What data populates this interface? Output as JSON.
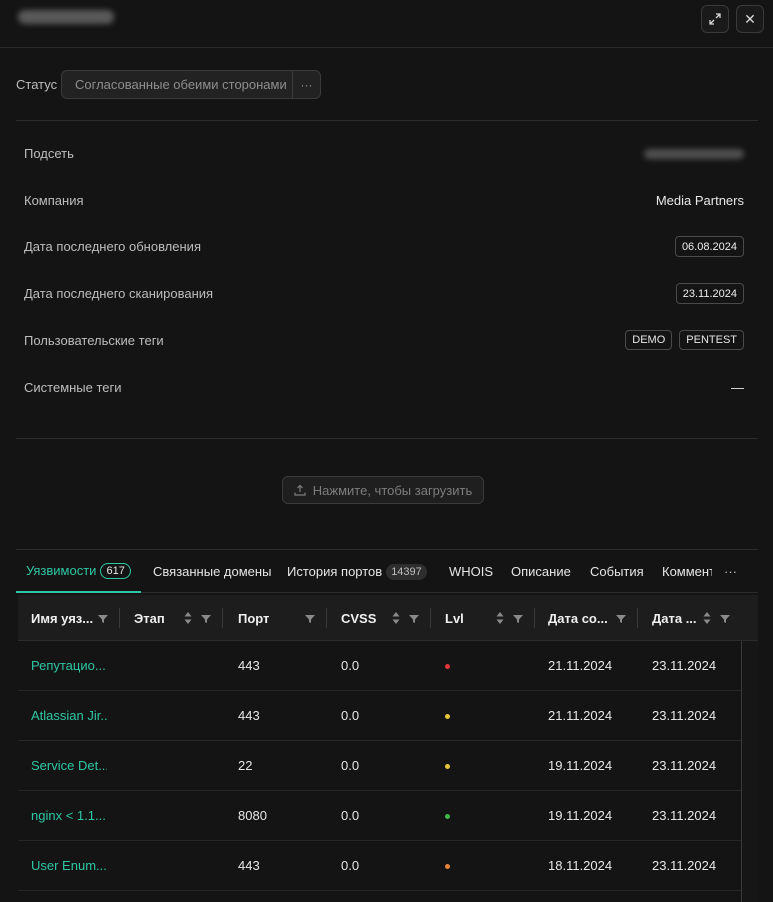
{
  "header": {
    "title": "",
    "expand_icon": "expand-icon",
    "close_icon": "close-icon",
    "close_glyph": "✕"
  },
  "status": {
    "label": "Статус",
    "value": "Согласованные обеими сторонами",
    "more_glyph": "···"
  },
  "info": {
    "subnet_label": "Подсеть",
    "company_label": "Компания",
    "company_value": "Media Partners",
    "last_update_label": "Дата последнего обновления",
    "last_update_value": "06.08.2024",
    "last_scan_label": "Дата последнего сканирования",
    "last_scan_value": "23.11.2024",
    "user_tags_label": "Пользовательские теги",
    "user_tags": [
      "DEMO",
      "PENTEST"
    ],
    "system_tags_label": "Системные теги",
    "system_tags_value": "—"
  },
  "upload": {
    "label": "Нажмите, чтобы загрузить",
    "icon": "upload-icon"
  },
  "tabs": [
    {
      "label": "Уязвимости",
      "badge": "617"
    },
    {
      "label": "Связанные домены"
    },
    {
      "label": "История портов",
      "badge": "14397"
    },
    {
      "label": "WHOIS"
    },
    {
      "label": "Описание"
    },
    {
      "label": "События"
    },
    {
      "label": "Комментарии"
    }
  ],
  "tabs_more": "···",
  "table": {
    "columns": [
      "Имя уязвимости",
      "Этап",
      "Порт",
      "CVSS",
      "Lvl",
      "Дата создания",
      "Дата обновления"
    ],
    "columns_display": [
      "Имя уяз...",
      "Этап",
      "Порт",
      "CVSS",
      "Lvl",
      "Дата со...",
      "Дата ..."
    ],
    "rows": [
      {
        "name": "Репутацио...",
        "stage": "",
        "port": "443",
        "cvss": "0.0",
        "lvl_color": "#e0353b",
        "created": "21.11.2024",
        "updated": "23.11.2024"
      },
      {
        "name": "Atlassian Jir...",
        "stage": "",
        "port": "443",
        "cvss": "0.0",
        "lvl_color": "#e8c43a",
        "created": "21.11.2024",
        "updated": "23.11.2024"
      },
      {
        "name": "Service Det...",
        "stage": "",
        "port": "22",
        "cvss": "0.0",
        "lvl_color": "#e8c43a",
        "created": "19.11.2024",
        "updated": "23.11.2024"
      },
      {
        "name": "nginx < 1.1...",
        "stage": "",
        "port": "8080",
        "cvss": "0.0",
        "lvl_color": "#3fb84a",
        "created": "19.11.2024",
        "updated": "23.11.2024"
      },
      {
        "name": "User Enum...",
        "stage": "",
        "port": "443",
        "cvss": "0.0",
        "lvl_color": "#e8843a",
        "created": "18.11.2024",
        "updated": "23.11.2024"
      }
    ]
  },
  "colors": {
    "accent": "#2ec7a4",
    "background": "#141414"
  }
}
